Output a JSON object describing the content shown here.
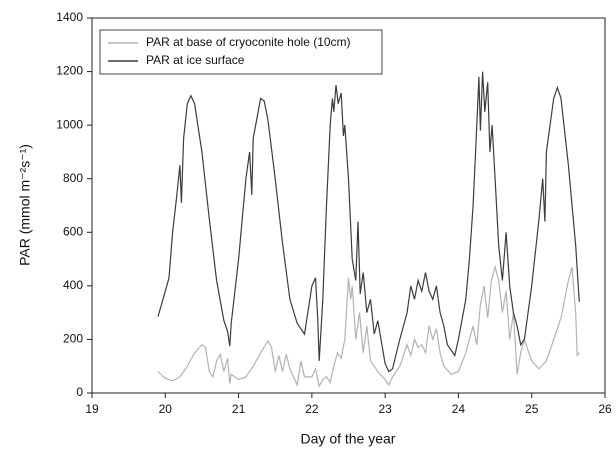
{
  "chart_data": {
    "type": "line",
    "xlabel": "Day of the year",
    "ylabel": "PAR (mmol m⁻²s⁻¹)",
    "xlim": [
      19,
      26
    ],
    "xticks": [
      19,
      20,
      21,
      22,
      23,
      24,
      25,
      26
    ],
    "ylim": [
      0,
      1400
    ],
    "yticks": [
      0,
      200,
      400,
      600,
      800,
      1000,
      1200,
      1400
    ],
    "grid": false,
    "legend": "upper-left",
    "series": [
      {
        "name": "PAR at base of cryoconite hole (10cm)",
        "color": "#b3b3b3",
        "x": [
          19.9,
          20.0,
          20.1,
          20.2,
          20.3,
          20.4,
          20.5,
          20.55,
          20.6,
          20.65,
          20.7,
          20.75,
          20.8,
          20.85,
          20.88,
          20.9,
          21.0,
          21.1,
          21.2,
          21.3,
          21.4,
          21.45,
          21.5,
          21.55,
          21.6,
          21.65,
          21.7,
          21.8,
          21.85,
          21.9,
          22.0,
          22.05,
          22.1,
          22.15,
          22.2,
          22.25,
          22.3,
          22.35,
          22.4,
          22.45,
          22.5,
          22.53,
          22.55,
          22.6,
          22.65,
          22.7,
          22.75,
          22.8,
          22.85,
          22.9,
          23.0,
          23.05,
          23.1,
          23.2,
          23.3,
          23.35,
          23.4,
          23.45,
          23.5,
          23.55,
          23.6,
          23.65,
          23.7,
          23.75,
          23.8,
          23.9,
          24.0,
          24.1,
          24.15,
          24.2,
          24.25,
          24.3,
          24.35,
          24.4,
          24.45,
          24.5,
          24.55,
          24.6,
          24.65,
          24.7,
          24.75,
          24.8,
          24.85,
          24.9,
          25.0,
          25.1,
          25.2,
          25.3,
          25.4,
          25.5,
          25.55,
          25.6,
          25.62,
          25.65
        ],
        "values": [
          80,
          55,
          45,
          60,
          100,
          150,
          180,
          170,
          80,
          60,
          120,
          145,
          80,
          130,
          35,
          70,
          50,
          60,
          100,
          150,
          195,
          170,
          80,
          140,
          80,
          145,
          90,
          30,
          120,
          60,
          60,
          90,
          25,
          50,
          60,
          40,
          100,
          150,
          130,
          200,
          430,
          350,
          400,
          200,
          300,
          150,
          250,
          120,
          100,
          80,
          50,
          30,
          60,
          100,
          180,
          140,
          200,
          170,
          180,
          150,
          250,
          200,
          240,
          150,
          100,
          70,
          80,
          150,
          200,
          250,
          180,
          330,
          400,
          280,
          420,
          470,
          420,
          300,
          380,
          200,
          300,
          70,
          150,
          200,
          120,
          90,
          120,
          200,
          280,
          420,
          470,
          300,
          140,
          150
        ]
      },
      {
        "name": "PAR at ice surface",
        "color": "#3c3c3c",
        "x": [
          19.9,
          20.0,
          20.05,
          20.1,
          20.15,
          20.2,
          20.22,
          20.25,
          20.3,
          20.35,
          20.4,
          20.5,
          20.6,
          20.7,
          20.8,
          20.85,
          20.88,
          20.9,
          21.0,
          21.1,
          21.15,
          21.18,
          21.2,
          21.3,
          21.35,
          21.4,
          21.5,
          21.6,
          21.7,
          21.8,
          21.9,
          22.0,
          22.05,
          22.08,
          22.1,
          22.15,
          22.2,
          22.25,
          22.28,
          22.3,
          22.33,
          22.36,
          22.4,
          22.43,
          22.45,
          22.5,
          22.55,
          22.6,
          22.63,
          22.66,
          22.7,
          22.75,
          22.8,
          22.85,
          22.9,
          23.0,
          23.05,
          23.1,
          23.2,
          23.3,
          23.35,
          23.4,
          23.45,
          23.5,
          23.55,
          23.6,
          23.65,
          23.7,
          23.75,
          23.8,
          23.85,
          23.9,
          23.95,
          24.0,
          24.1,
          24.15,
          24.2,
          24.25,
          24.28,
          24.3,
          24.33,
          24.36,
          24.4,
          24.43,
          24.46,
          24.5,
          24.55,
          24.6,
          24.65,
          24.7,
          24.75,
          24.8,
          24.85,
          24.9,
          25.0,
          25.1,
          25.15,
          25.18,
          25.2,
          25.3,
          25.35,
          25.4,
          25.5,
          25.6,
          25.65
        ],
        "values": [
          285,
          380,
          430,
          600,
          720,
          850,
          710,
          950,
          1080,
          1110,
          1080,
          900,
          650,
          420,
          270,
          230,
          175,
          260,
          500,
          800,
          900,
          740,
          950,
          1100,
          1090,
          1020,
          800,
          560,
          350,
          260,
          220,
          400,
          430,
          280,
          120,
          350,
          700,
          1000,
          1100,
          1050,
          1150,
          1080,
          1120,
          960,
          1000,
          800,
          500,
          420,
          640,
          370,
          450,
          300,
          350,
          220,
          270,
          110,
          80,
          90,
          200,
          300,
          400,
          350,
          420,
          380,
          450,
          380,
          350,
          400,
          300,
          250,
          180,
          160,
          140,
          200,
          350,
          500,
          700,
          1000,
          1180,
          980,
          1200,
          1050,
          1160,
          900,
          1000,
          800,
          550,
          420,
          600,
          400,
          300,
          250,
          180,
          200,
          400,
          650,
          800,
          640,
          900,
          1100,
          1140,
          1100,
          850,
          550,
          340
        ]
      }
    ]
  }
}
